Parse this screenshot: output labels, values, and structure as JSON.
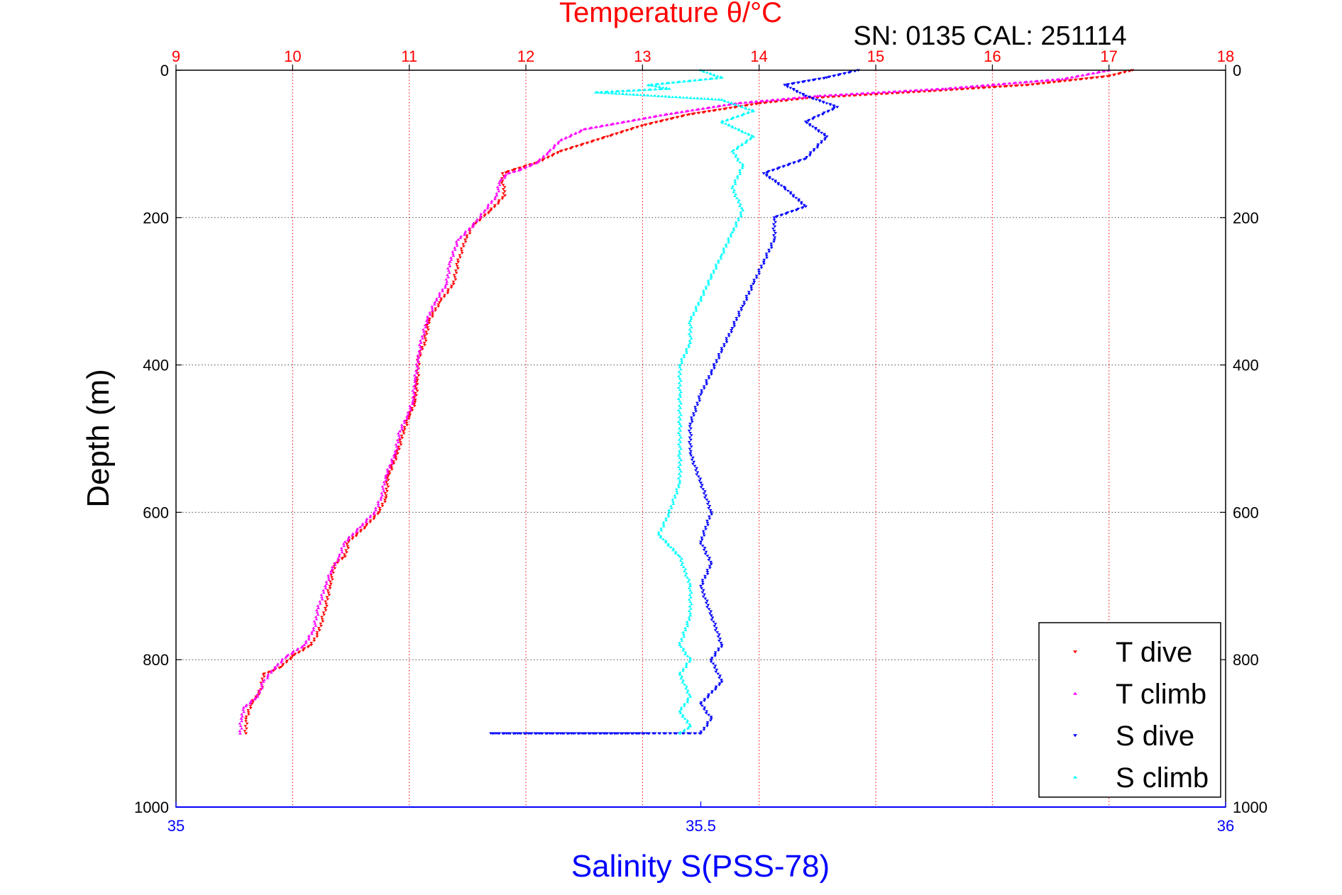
{
  "chart_data": {
    "type": "scatter",
    "title": "Temperature θ/°C",
    "subtitle": "SN: 0135  CAL: 251114",
    "xlabel": "Salinity S(PSS-78)",
    "ylabel": "Depth (m)",
    "x_top": {
      "label": "Temperature θ/°C",
      "lim": [
        9,
        18
      ],
      "ticks": [
        "9",
        "10",
        "11",
        "12",
        "13",
        "14",
        "15",
        "16",
        "17",
        "18"
      ],
      "color": "#ff0000",
      "grid": true
    },
    "x_bottom": {
      "label": "Salinity S(PSS-78)",
      "lim": [
        35,
        36
      ],
      "ticks": [
        "35",
        "35.5",
        "36"
      ],
      "color": "#0000ff"
    },
    "y": {
      "lim": [
        0,
        1000
      ],
      "reversed": true,
      "ticks": [
        "0",
        "200",
        "400",
        "600",
        "800",
        "1000"
      ],
      "grid": true
    },
    "legend": {
      "position": "bottom-right",
      "entries": [
        "T dive",
        "T climb",
        "S dive",
        "S climb"
      ]
    },
    "series": [
      {
        "name": "T dive",
        "axis": "temperature",
        "color": "#ff0000",
        "marker": "triangle-down",
        "points": [
          [
            17.2,
            0
          ],
          [
            17.0,
            8
          ],
          [
            16.3,
            20
          ],
          [
            15.5,
            28
          ],
          [
            14.4,
            38
          ],
          [
            14.0,
            45
          ],
          [
            13.4,
            60
          ],
          [
            13.0,
            75
          ],
          [
            12.7,
            90
          ],
          [
            12.3,
            110
          ],
          [
            12.1,
            125
          ],
          [
            11.9,
            135
          ],
          [
            11.8,
            140
          ],
          [
            11.8,
            150
          ],
          [
            11.82,
            170
          ],
          [
            11.7,
            190
          ],
          [
            11.55,
            210
          ],
          [
            11.48,
            230
          ],
          [
            11.42,
            260
          ],
          [
            11.38,
            290
          ],
          [
            11.26,
            315
          ],
          [
            11.17,
            340
          ],
          [
            11.13,
            370
          ],
          [
            11.08,
            390
          ],
          [
            11.07,
            420
          ],
          [
            11.05,
            450
          ],
          [
            11.0,
            470
          ],
          [
            10.95,
            490
          ],
          [
            10.9,
            520
          ],
          [
            10.82,
            550
          ],
          [
            10.8,
            580
          ],
          [
            10.74,
            600
          ],
          [
            10.62,
            620
          ],
          [
            10.48,
            640
          ],
          [
            10.45,
            660
          ],
          [
            10.36,
            670
          ],
          [
            10.32,
            700
          ],
          [
            10.28,
            730
          ],
          [
            10.23,
            760
          ],
          [
            10.16,
            780
          ],
          [
            10.0,
            795
          ],
          [
            9.9,
            810
          ],
          [
            9.75,
            820
          ],
          [
            9.73,
            840
          ],
          [
            9.65,
            860
          ],
          [
            9.6,
            880
          ],
          [
            9.6,
            900
          ]
        ]
      },
      {
        "name": "T climb",
        "axis": "temperature",
        "color": "#ff00ff",
        "marker": "triangle-up",
        "points": [
          [
            17.0,
            0
          ],
          [
            16.6,
            12
          ],
          [
            15.6,
            25
          ],
          [
            14.5,
            35
          ],
          [
            13.8,
            45
          ],
          [
            13.2,
            60
          ],
          [
            12.5,
            80
          ],
          [
            12.3,
            95
          ],
          [
            12.2,
            110
          ],
          [
            12.1,
            125
          ],
          [
            11.95,
            135
          ],
          [
            11.85,
            140
          ],
          [
            11.78,
            150
          ],
          [
            11.75,
            170
          ],
          [
            11.65,
            190
          ],
          [
            11.55,
            210
          ],
          [
            11.42,
            230
          ],
          [
            11.35,
            260
          ],
          [
            11.32,
            290
          ],
          [
            11.22,
            315
          ],
          [
            11.15,
            340
          ],
          [
            11.1,
            370
          ],
          [
            11.08,
            390
          ],
          [
            11.05,
            420
          ],
          [
            11.03,
            450
          ],
          [
            10.98,
            470
          ],
          [
            10.92,
            490
          ],
          [
            10.88,
            520
          ],
          [
            10.8,
            550
          ],
          [
            10.76,
            580
          ],
          [
            10.7,
            600
          ],
          [
            10.58,
            620
          ],
          [
            10.45,
            640
          ],
          [
            10.4,
            660
          ],
          [
            10.33,
            680
          ],
          [
            10.28,
            700
          ],
          [
            10.22,
            730
          ],
          [
            10.18,
            760
          ],
          [
            10.1,
            780
          ],
          [
            9.95,
            795
          ],
          [
            9.85,
            810
          ],
          [
            9.75,
            830
          ],
          [
            9.7,
            850
          ],
          [
            9.58,
            865
          ],
          [
            9.56,
            880
          ],
          [
            9.55,
            900
          ]
        ]
      },
      {
        "name": "S dive",
        "axis": "salinity",
        "color": "#0000ff",
        "marker": "triangle-down",
        "points": [
          [
            35.65,
            0
          ],
          [
            35.62,
            10
          ],
          [
            35.58,
            20
          ],
          [
            35.6,
            35
          ],
          [
            35.63,
            50
          ],
          [
            35.6,
            70
          ],
          [
            35.62,
            90
          ],
          [
            35.6,
            120
          ],
          [
            35.56,
            140
          ],
          [
            35.58,
            160
          ],
          [
            35.6,
            185
          ],
          [
            35.57,
            200
          ],
          [
            35.57,
            230
          ],
          [
            35.56,
            260
          ],
          [
            35.55,
            290
          ],
          [
            35.54,
            320
          ],
          [
            35.53,
            350
          ],
          [
            35.52,
            380
          ],
          [
            35.51,
            410
          ],
          [
            35.5,
            440
          ],
          [
            35.49,
            480
          ],
          [
            35.49,
            520
          ],
          [
            35.5,
            560
          ],
          [
            35.51,
            600
          ],
          [
            35.5,
            640
          ],
          [
            35.51,
            670
          ],
          [
            35.5,
            700
          ],
          [
            35.51,
            740
          ],
          [
            35.52,
            780
          ],
          [
            35.51,
            800
          ],
          [
            35.52,
            830
          ],
          [
            35.5,
            860
          ],
          [
            35.51,
            880
          ],
          [
            35.5,
            900
          ],
          [
            35.48,
            900
          ],
          [
            35.3,
            900
          ],
          [
            35.45,
            900
          ]
        ]
      },
      {
        "name": "S climb",
        "axis": "salinity",
        "color": "#00ffff",
        "marker": "triangle-up",
        "points": [
          [
            35.5,
            0
          ],
          [
            35.52,
            10
          ],
          [
            35.45,
            20
          ],
          [
            35.47,
            25
          ],
          [
            35.4,
            30
          ],
          [
            35.52,
            40
          ],
          [
            35.55,
            55
          ],
          [
            35.52,
            70
          ],
          [
            35.55,
            90
          ],
          [
            35.53,
            110
          ],
          [
            35.54,
            130
          ],
          [
            35.53,
            160
          ],
          [
            35.54,
            190
          ],
          [
            35.53,
            220
          ],
          [
            35.52,
            250
          ],
          [
            35.51,
            280
          ],
          [
            35.5,
            310
          ],
          [
            35.49,
            340
          ],
          [
            35.49,
            370
          ],
          [
            35.48,
            400
          ],
          [
            35.48,
            440
          ],
          [
            35.48,
            480
          ],
          [
            35.48,
            520
          ],
          [
            35.48,
            560
          ],
          [
            35.47,
            600
          ],
          [
            35.46,
            630
          ],
          [
            35.48,
            660
          ],
          [
            35.49,
            700
          ],
          [
            35.49,
            740
          ],
          [
            35.48,
            780
          ],
          [
            35.49,
            800
          ],
          [
            35.48,
            820
          ],
          [
            35.49,
            850
          ],
          [
            35.48,
            870
          ],
          [
            35.49,
            890
          ],
          [
            35.48,
            900
          ]
        ]
      }
    ]
  }
}
